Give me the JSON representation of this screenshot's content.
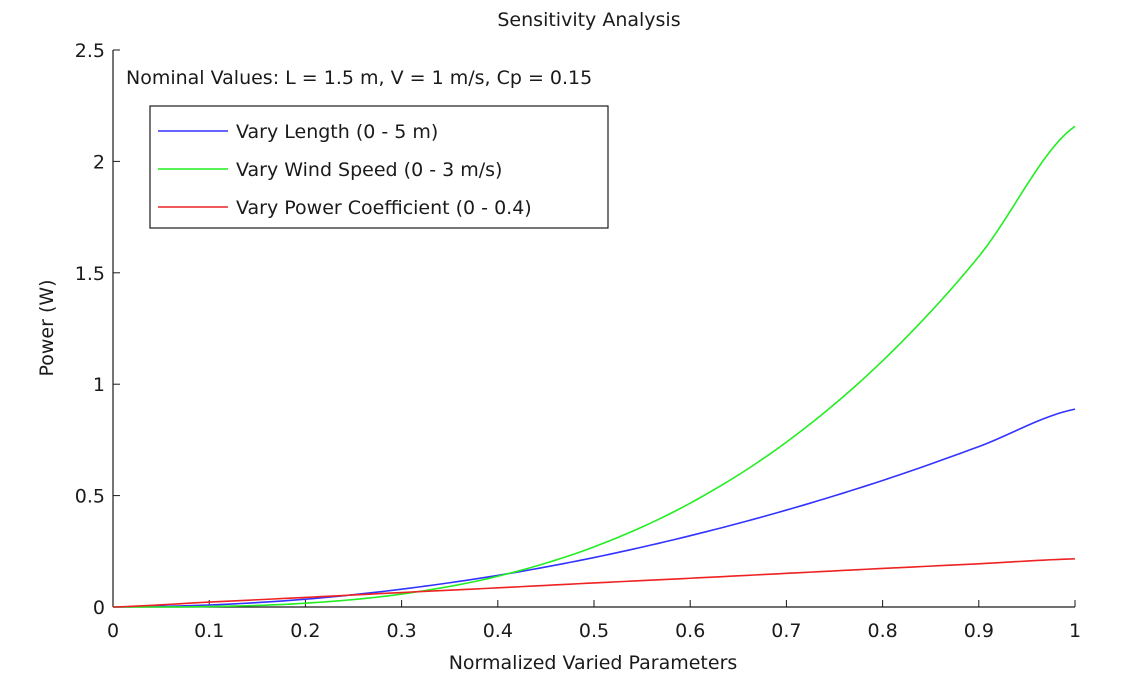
{
  "chart_data": {
    "type": "line",
    "title": "Sensitivity Analysis",
    "xlabel": "Normalized Varied Parameters",
    "ylabel": "Power (W)",
    "xlim": [
      0,
      1
    ],
    "ylim": [
      0,
      2.5
    ],
    "x_ticks": [
      "0",
      "0.1",
      "0.2",
      "0.3",
      "0.4",
      "0.5",
      "0.6",
      "0.7",
      "0.8",
      "0.9",
      "1"
    ],
    "y_ticks": [
      "0",
      "0.5",
      "1",
      "1.5",
      "2",
      "2.5"
    ],
    "grid": false,
    "legend_position": "top-left",
    "annotation": "Nominal Values: L = 1.5 m, V = 1 m/s, Cp = 0.15",
    "x": [
      0,
      0.1,
      0.2,
      0.3,
      0.4,
      0.5,
      0.6,
      0.7,
      0.8,
      0.9,
      1.0
    ],
    "series": [
      {
        "name": "Vary Length (0 - 5 m)",
        "color": "#3333ff",
        "values": [
          0,
          0.009,
          0.035,
          0.08,
          0.142,
          0.222,
          0.32,
          0.435,
          0.568,
          0.72,
          0.888
        ]
      },
      {
        "name": "Vary Wind Speed (0 - 3 m/s)",
        "color": "#22ee22",
        "values": [
          0,
          0.002,
          0.017,
          0.058,
          0.138,
          0.27,
          0.466,
          0.74,
          1.105,
          1.573,
          2.158
        ]
      },
      {
        "name": "Vary Power Coefficient (0 - 0.4)",
        "color": "#ee2222",
        "values": [
          0,
          0.022,
          0.043,
          0.065,
          0.086,
          0.108,
          0.129,
          0.151,
          0.173,
          0.194,
          0.216
        ]
      }
    ]
  }
}
